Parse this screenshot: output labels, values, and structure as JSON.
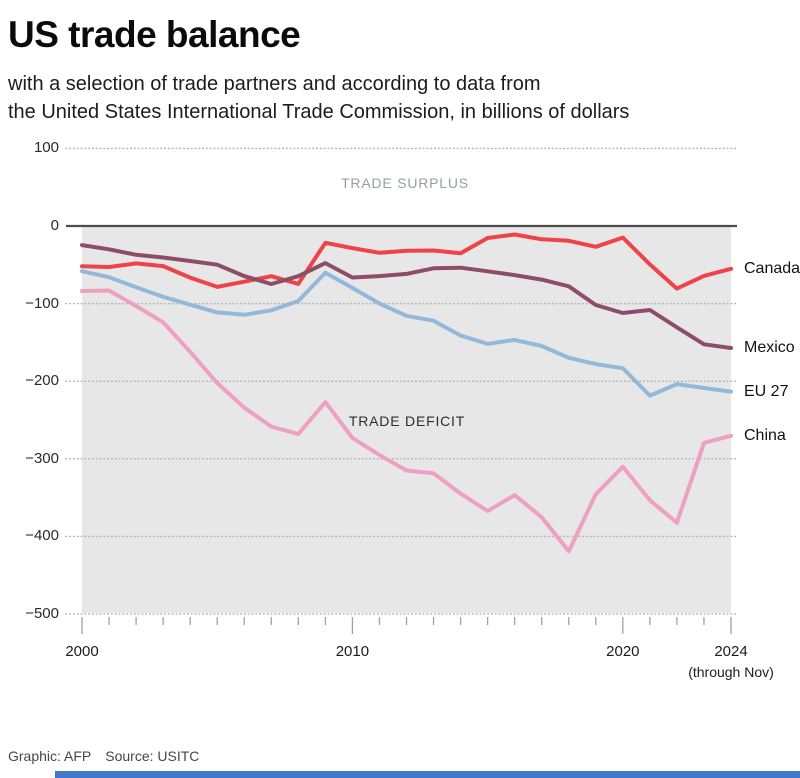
{
  "header": {
    "title": "US trade balance",
    "subtitle_line1": "with a selection of trade partners and according to data from",
    "subtitle_line2": "the United States International Trade Commission, in billions of dollars"
  },
  "annotations": {
    "surplus": "TRADE SURPLUS",
    "deficit": "TRADE DEFICIT"
  },
  "footer": {
    "credit": "Graphic: AFP",
    "source": "Source: USITC"
  },
  "colors": {
    "plot_bg": "#e8e7e7",
    "grid": "#b3b3b3",
    "zero_line": "#4c4c4c",
    "axis_tick": "#a0a0a0",
    "bottom_bar": "#4377c8"
  },
  "chart_data": {
    "type": "line",
    "title": "US trade balance",
    "units": "billions of dollars",
    "x": [
      2000,
      2001,
      2002,
      2003,
      2004,
      2005,
      2006,
      2007,
      2008,
      2009,
      2010,
      2011,
      2012,
      2013,
      2014,
      2015,
      2016,
      2017,
      2018,
      2019,
      2020,
      2021,
      2022,
      2023,
      2024
    ],
    "series": [
      {
        "name": "China",
        "color": "#eda1bf",
        "values": [
          -83.8,
          -83.1,
          -103.1,
          -124.1,
          -162.3,
          -202.3,
          -234.1,
          -258.5,
          -268.0,
          -226.9,
          -273.1,
          -295.2,
          -315.1,
          -318.7,
          -344.8,
          -367.3,
          -346.8,
          -375.2,
          -419.2,
          -345.6,
          -310.3,
          -353.5,
          -382.3,
          -279.4,
          -270.4
        ]
      },
      {
        "name": "EU 27",
        "color": "#93b9da",
        "values": [
          -58.2,
          -66.0,
          -79.0,
          -91.2,
          -101.4,
          -111.3,
          -114.4,
          -108.6,
          -96.7,
          -60.2,
          -79.8,
          -99.9,
          -115.7,
          -122.0,
          -141.1,
          -151.9,
          -146.8,
          -154.6,
          -169.8,
          -177.9,
          -183.3,
          -218.5,
          -203.8,
          -208.8,
          -213.4
        ]
      },
      {
        "name": "Canada",
        "color": "#ee4349",
        "values": [
          -51.9,
          -52.8,
          -48.2,
          -51.7,
          -66.5,
          -78.5,
          -71.8,
          -64.7,
          -74.6,
          -21.6,
          -28.5,
          -34.5,
          -31.8,
          -31.6,
          -35.2,
          -15.5,
          -11.0,
          -17.1,
          -19.1,
          -26.8,
          -14.9,
          -49.5,
          -80.7,
          -64.3,
          -55.2
        ]
      },
      {
        "name": "Mexico",
        "color": "#8e4d67",
        "values": [
          -24.6,
          -30.0,
          -37.1,
          -40.6,
          -45.1,
          -49.9,
          -64.5,
          -74.8,
          -64.7,
          -47.8,
          -66.4,
          -64.6,
          -61.7,
          -54.5,
          -53.8,
          -58.4,
          -63.3,
          -69.1,
          -77.7,
          -101.8,
          -112.1,
          -108.2,
          -130.5,
          -152.4,
          -157.2
        ]
      }
    ],
    "ylim": [
      -500,
      100
    ],
    "yticks": [
      {
        "label": "100",
        "value": 100
      },
      {
        "label": "0",
        "value": 0
      },
      {
        "label": "−100",
        "value": -100
      },
      {
        "label": "−200",
        "value": -200
      },
      {
        "label": "−300",
        "value": -300
      },
      {
        "label": "−400",
        "value": -400
      },
      {
        "label": "−500",
        "value": -500
      }
    ],
    "xticks_labeled": [
      {
        "label": "2000",
        "year": 2000
      },
      {
        "label": "2010",
        "year": 2010
      },
      {
        "label": "2020",
        "year": 2020
      },
      {
        "label": "2024",
        "year": 2024
      }
    ],
    "x_note": {
      "label": "(through Nov)",
      "year": 2024
    },
    "grid": "dotted horizontal",
    "legend_position": "right-end-labels"
  }
}
